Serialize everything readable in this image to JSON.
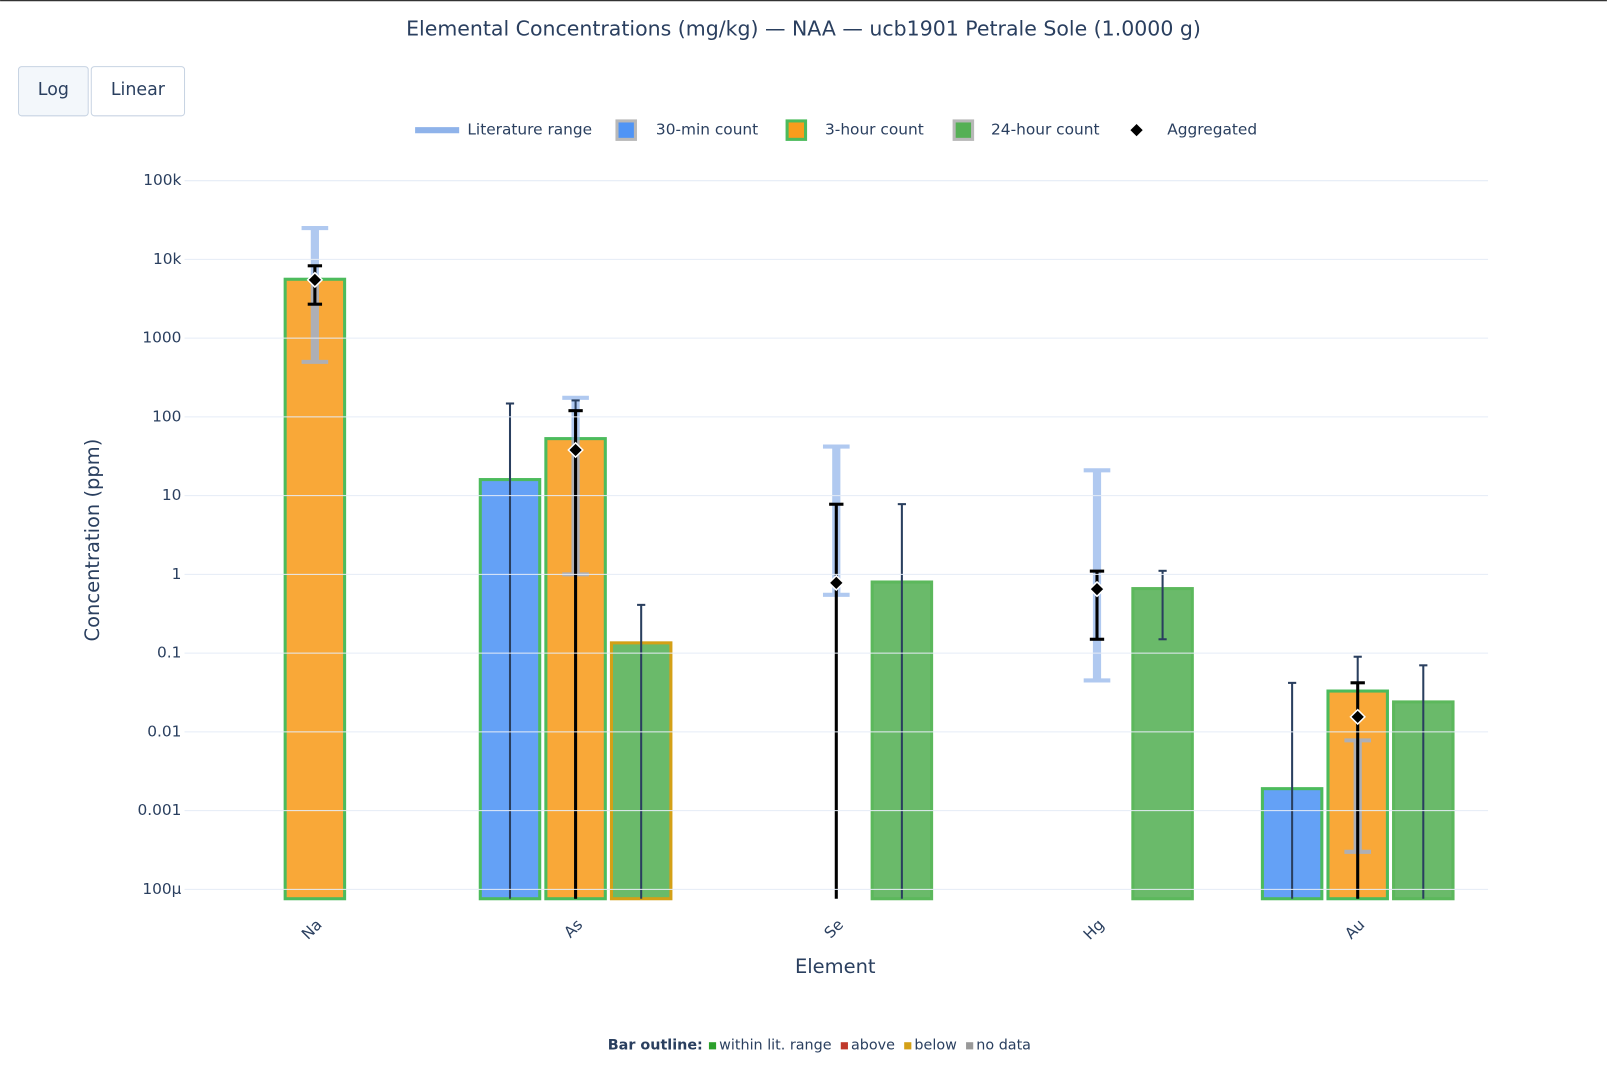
{
  "chart_data": {
    "type": "bar",
    "title": "Elemental Concentrations (mg/kg) — NAA — ucb1901 Petrale Sole (1.0000 g)",
    "buttons": [
      "Log",
      "Linear"
    ],
    "x_label": "Element",
    "y_label": "Concentration (ppm)",
    "y_log": true,
    "grid": true,
    "categories": [
      "Na",
      "As",
      "Se",
      "Hg",
      "Au"
    ],
    "ylim": [
      7.6e-05,
      220000
    ],
    "yticks": [
      {
        "value": 100000,
        "label": "100k"
      },
      {
        "value": 10000,
        "label": "10k"
      },
      1000,
      100,
      10,
      1,
      0.1,
      0.01,
      0.001,
      {
        "value": 0.0001,
        "label": "100μ"
      }
    ],
    "literature": {
      "name": "Literature range",
      "color": "#8fb3ea",
      "low": [
        500,
        1,
        0.55,
        0.045,
        0.0003
      ],
      "high": [
        25000,
        175,
        42,
        21,
        0.0078
      ]
    },
    "series": [
      {
        "name": "30-min count",
        "color": "#4f94f5",
        "legend_outline": "#b8b8b8",
        "values": [
          null,
          16,
          null,
          null,
          0.0019
        ],
        "error_plus": [
          null,
          132,
          null,
          null,
          0.04
        ],
        "error_minus": [
          null,
          16,
          null,
          null,
          0.0019
        ],
        "outline": [
          null,
          "#4cbb5c",
          null,
          null,
          "#4cbb5c"
        ]
      },
      {
        "name": "3-hour count",
        "color": "#f89c1c",
        "legend_outline": "#4cbb5c",
        "values": [
          5600,
          53,
          null,
          null,
          0.033
        ],
        "error_plus": [
          null,
          109,
          null,
          null,
          0.057
        ],
        "error_minus": [
          null,
          53,
          null,
          null,
          0.033
        ],
        "outline": [
          "#4cbb5c",
          "#4cbb5c",
          null,
          null,
          "#4cbb5c"
        ]
      },
      {
        "name": "24-hour count",
        "color": "#55b055",
        "legend_outline": "#b8b8b8",
        "values": [
          null,
          0.135,
          0.8,
          0.66,
          0.024
        ],
        "error_plus": [
          null,
          0.275,
          7.0,
          0.45,
          0.046
        ],
        "error_minus": [
          null,
          0.135,
          0.8,
          0.51,
          0.024
        ],
        "outline": [
          null,
          "#d4a017",
          "#5cb85c",
          "#5cb85c",
          "#5cb85c"
        ]
      }
    ],
    "aggregated": {
      "name": "Aggregated",
      "color": "#000000",
      "values": [
        5500,
        38,
        0.78,
        0.65,
        0.0155
      ],
      "error_plus": [
        2800,
        82,
        7.0,
        0.45,
        0.0265
      ],
      "error_minus": [
        2800,
        38,
        0.78,
        0.5,
        0.0155
      ]
    },
    "outline_legend": {
      "title": "Bar outline:",
      "items": [
        {
          "label": "within lit. range",
          "color": "#2ca02c"
        },
        {
          "label": "above",
          "color": "#c0392b"
        },
        {
          "label": "below",
          "color": "#d4a017"
        },
        {
          "label": "no data",
          "color": "#999999"
        }
      ]
    }
  }
}
